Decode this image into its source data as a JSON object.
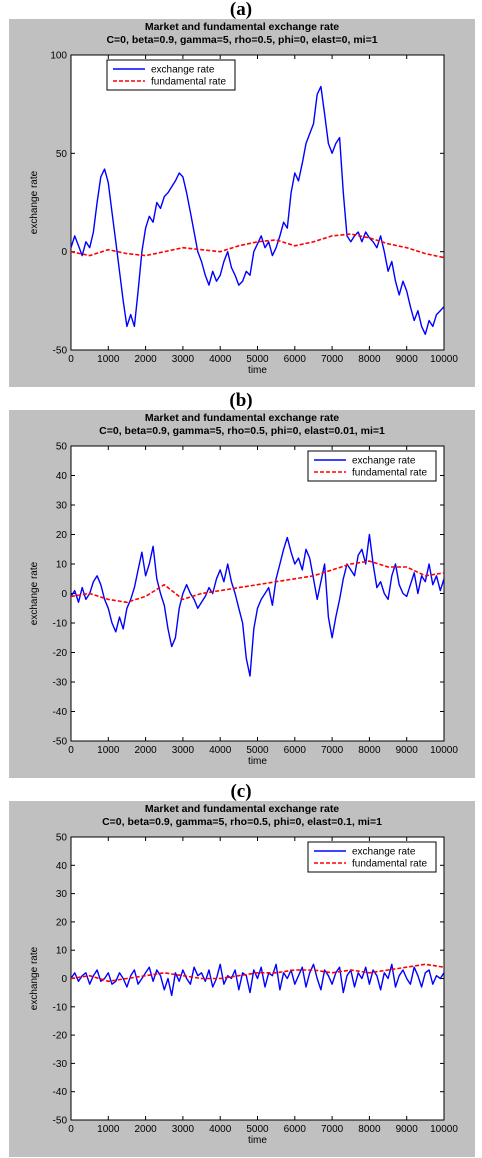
{
  "chart_data": [
    {
      "type": "line",
      "panel_label": "(a)",
      "title": "Market and fundamental exchange rate",
      "subtitle": "C=0, beta=0.9, gamma=5, rho=0.5, phi=0, elast=0, mi=1",
      "xlabel": "time",
      "ylabel": "exchange rate",
      "xlim": [
        0,
        10000
      ],
      "ylim": [
        -50,
        100
      ],
      "xticks": [
        0,
        1000,
        2000,
        3000,
        4000,
        5000,
        6000,
        7000,
        8000,
        9000,
        10000
      ],
      "yticks": [
        -50,
        0,
        50,
        100
      ],
      "legend_position": "top-left",
      "grid": false,
      "series": [
        {
          "name": "exchange rate",
          "color": "#0000ff",
          "style": "solid",
          "x": [
            0,
            100,
            200,
            300,
            400,
            500,
            600,
            700,
            800,
            900,
            1000,
            1100,
            1200,
            1300,
            1400,
            1500,
            1600,
            1700,
            1800,
            1900,
            2000,
            2100,
            2200,
            2300,
            2400,
            2500,
            2600,
            2700,
            2800,
            2900,
            3000,
            3100,
            3200,
            3300,
            3400,
            3500,
            3600,
            3700,
            3800,
            3900,
            4000,
            4100,
            4200,
            4300,
            4400,
            4500,
            4600,
            4700,
            4800,
            4900,
            5000,
            5100,
            5200,
            5300,
            5400,
            5500,
            5600,
            5700,
            5800,
            5900,
            6000,
            6100,
            6200,
            6300,
            6400,
            6500,
            6600,
            6700,
            6800,
            6900,
            7000,
            7100,
            7200,
            7300,
            7400,
            7500,
            7600,
            7700,
            7800,
            7900,
            8000,
            8100,
            8200,
            8300,
            8400,
            8500,
            8600,
            8700,
            8800,
            8900,
            9000,
            9100,
            9200,
            9300,
            9400,
            9500,
            9600,
            9700,
            9800,
            9900,
            10000
          ],
          "y": [
            2,
            8,
            3,
            -2,
            5,
            2,
            10,
            25,
            38,
            42,
            35,
            20,
            5,
            -10,
            -25,
            -38,
            -32,
            -38,
            -20,
            0,
            12,
            18,
            15,
            25,
            22,
            28,
            30,
            33,
            36,
            40,
            38,
            30,
            20,
            10,
            0,
            -5,
            -12,
            -17,
            -10,
            -15,
            -12,
            -5,
            0,
            -8,
            -12,
            -17,
            -15,
            -10,
            -12,
            0,
            4,
            8,
            2,
            5,
            -2,
            2,
            8,
            15,
            12,
            30,
            40,
            36,
            45,
            55,
            60,
            65,
            80,
            84,
            70,
            55,
            50,
            55,
            58,
            30,
            8,
            5,
            8,
            10,
            5,
            10,
            7,
            5,
            2,
            8,
            0,
            -10,
            -5,
            -15,
            -22,
            -15,
            -20,
            -28,
            -35,
            -30,
            -38,
            -42,
            -35,
            -38,
            -32,
            -30,
            -28
          ]
        },
        {
          "name": "fundamental rate",
          "color": "#ff0000",
          "style": "dashed",
          "x": [
            0,
            500,
            1000,
            1500,
            2000,
            2500,
            3000,
            3500,
            4000,
            4500,
            5000,
            5500,
            6000,
            6500,
            7000,
            7500,
            8000,
            8500,
            9000,
            9500,
            10000
          ],
          "y": [
            0,
            -2,
            1,
            -1,
            -2,
            0,
            2,
            1,
            0,
            3,
            5,
            6,
            3,
            5,
            8,
            9,
            7,
            4,
            2,
            -1,
            -3
          ]
        }
      ]
    },
    {
      "type": "line",
      "panel_label": "(b)",
      "title": "Market and fundamental exchange rate",
      "subtitle": "C=0, beta=0.9, gamma=5, rho=0.5, phi=0, elast=0.01, mi=1",
      "xlabel": "time",
      "ylabel": "exchange rate",
      "xlim": [
        0,
        10000
      ],
      "ylim": [
        -50,
        50
      ],
      "xticks": [
        0,
        1000,
        2000,
        3000,
        4000,
        5000,
        6000,
        7000,
        8000,
        9000,
        10000
      ],
      "yticks": [
        -50,
        -40,
        -30,
        -20,
        -10,
        0,
        10,
        20,
        30,
        40,
        50
      ],
      "legend_position": "top-right",
      "grid": false,
      "series": [
        {
          "name": "exchange rate",
          "color": "#0000ff",
          "style": "solid",
          "x": [
            0,
            100,
            200,
            300,
            400,
            500,
            600,
            700,
            800,
            900,
            1000,
            1100,
            1200,
            1300,
            1400,
            1500,
            1600,
            1700,
            1800,
            1900,
            2000,
            2100,
            2200,
            2300,
            2400,
            2500,
            2600,
            2700,
            2800,
            2900,
            3000,
            3100,
            3200,
            3300,
            3400,
            3500,
            3600,
            3700,
            3800,
            3900,
            4000,
            4100,
            4200,
            4300,
            4400,
            4500,
            4600,
            4700,
            4800,
            4900,
            5000,
            5100,
            5200,
            5300,
            5400,
            5500,
            5600,
            5700,
            5800,
            5900,
            6000,
            6100,
            6200,
            6300,
            6400,
            6500,
            6600,
            6700,
            6800,
            6900,
            7000,
            7100,
            7200,
            7300,
            7400,
            7500,
            7600,
            7700,
            7800,
            7900,
            8000,
            8100,
            8200,
            8300,
            8400,
            8500,
            8600,
            8700,
            8800,
            8900,
            9000,
            9100,
            9200,
            9300,
            9400,
            9500,
            9600,
            9700,
            9800,
            9900,
            10000
          ],
          "y": [
            -1,
            1,
            -3,
            2,
            -2,
            0,
            4,
            6,
            3,
            -2,
            -5,
            -10,
            -13,
            -8,
            -12,
            -5,
            -2,
            2,
            8,
            14,
            6,
            10,
            16,
            5,
            0,
            -4,
            -12,
            -18,
            -15,
            -5,
            0,
            3,
            0,
            -2,
            -5,
            -3,
            -1,
            2,
            0,
            5,
            8,
            4,
            10,
            4,
            0,
            -5,
            -10,
            -22,
            -28,
            -12,
            -5,
            -2,
            0,
            2,
            -4,
            5,
            10,
            15,
            19,
            14,
            10,
            12,
            8,
            15,
            12,
            5,
            -2,
            4,
            10,
            -8,
            -15,
            -8,
            -2,
            5,
            10,
            8,
            6,
            13,
            15,
            10,
            20,
            10,
            2,
            4,
            0,
            -2,
            6,
            10,
            3,
            0,
            -1,
            3,
            7,
            0,
            6,
            4,
            10,
            3,
            6,
            1,
            5
          ]
        },
        {
          "name": "fundamental rate",
          "color": "#ff0000",
          "style": "dashed",
          "x": [
            0,
            500,
            1000,
            1500,
            2000,
            2500,
            3000,
            3500,
            4000,
            4500,
            5000,
            5500,
            6000,
            6500,
            7000,
            7500,
            8000,
            8500,
            9000,
            9500,
            10000
          ],
          "y": [
            -1,
            0,
            -2,
            -3,
            -1,
            3,
            -2,
            0,
            1,
            2,
            3,
            4,
            5,
            6,
            8,
            10,
            11,
            9,
            9,
            6,
            7
          ]
        }
      ]
    },
    {
      "type": "line",
      "panel_label": "(c)",
      "title": "Market and fundamental exchange rate",
      "subtitle": "C=0, beta=0.9, gamma=5, rho=0.5, phi=0, elast=0.1, mi=1",
      "xlabel": "time",
      "ylabel": "exchange rate",
      "xlim": [
        0,
        10000
      ],
      "ylim": [
        -50,
        50
      ],
      "xticks": [
        0,
        1000,
        2000,
        3000,
        4000,
        5000,
        6000,
        7000,
        8000,
        9000,
        10000
      ],
      "yticks": [
        -50,
        -40,
        -30,
        -20,
        -10,
        0,
        10,
        20,
        30,
        40,
        50
      ],
      "legend_position": "top-right",
      "grid": false,
      "series": [
        {
          "name": "exchange rate",
          "color": "#0000ff",
          "style": "solid",
          "x": [
            0,
            100,
            200,
            300,
            400,
            500,
            600,
            700,
            800,
            900,
            1000,
            1100,
            1200,
            1300,
            1400,
            1500,
            1600,
            1700,
            1800,
            1900,
            2000,
            2100,
            2200,
            2300,
            2400,
            2500,
            2600,
            2700,
            2800,
            2900,
            3000,
            3100,
            3200,
            3300,
            3400,
            3500,
            3600,
            3700,
            3800,
            3900,
            4000,
            4100,
            4200,
            4300,
            4400,
            4500,
            4600,
            4700,
            4800,
            4900,
            5000,
            5100,
            5200,
            5300,
            5400,
            5500,
            5600,
            5700,
            5800,
            5900,
            6000,
            6100,
            6200,
            6300,
            6400,
            6500,
            6600,
            6700,
            6800,
            6900,
            7000,
            7100,
            7200,
            7300,
            7400,
            7500,
            7600,
            7700,
            7800,
            7900,
            8000,
            8100,
            8200,
            8300,
            8400,
            8500,
            8600,
            8700,
            8800,
            8900,
            9000,
            9100,
            9200,
            9300,
            9400,
            9500,
            9600,
            9700,
            9800,
            9900,
            10000
          ],
          "y": [
            0,
            2,
            -1,
            1,
            2,
            -2,
            1,
            3,
            -1,
            0,
            2,
            -2,
            -1,
            2,
            0,
            -3,
            1,
            3,
            -2,
            0,
            2,
            4,
            -1,
            3,
            1,
            -4,
            0,
            -6,
            2,
            -1,
            3,
            0,
            -2,
            4,
            1,
            2,
            -1,
            3,
            -3,
            0,
            5,
            -2,
            1,
            0,
            3,
            -4,
            2,
            1,
            -5,
            3,
            0,
            4,
            -3,
            2,
            1,
            5,
            -4,
            2,
            0,
            3,
            -2,
            1,
            4,
            -3,
            2,
            5,
            0,
            -4,
            3,
            1,
            -2,
            2,
            4,
            -5,
            1,
            3,
            -3,
            2,
            0,
            4,
            -2,
            3,
            1,
            -4,
            2,
            0,
            5,
            -3,
            1,
            3,
            0,
            -2,
            4,
            1,
            -3,
            2,
            3,
            -2,
            1,
            0,
            2
          ]
        },
        {
          "name": "fundamental rate",
          "color": "#ff0000",
          "style": "dashed",
          "x": [
            0,
            500,
            1000,
            1500,
            2000,
            2500,
            3000,
            3500,
            4000,
            4500,
            5000,
            5500,
            6000,
            6500,
            7000,
            7500,
            8000,
            8500,
            9000,
            9500,
            10000
          ],
          "y": [
            0,
            1,
            -1,
            0,
            1,
            2,
            1,
            0,
            0,
            1,
            2,
            2,
            3,
            3,
            2,
            3,
            2,
            3,
            4,
            5,
            4
          ]
        }
      ]
    }
  ]
}
